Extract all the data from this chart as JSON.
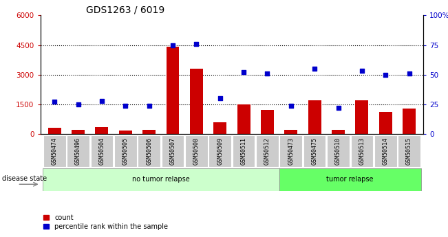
{
  "title": "GDS1263 / 6019",
  "samples": [
    "GSM50474",
    "GSM50496",
    "GSM50504",
    "GSM50505",
    "GSM50506",
    "GSM50507",
    "GSM50508",
    "GSM50509",
    "GSM50511",
    "GSM50512",
    "GSM50473",
    "GSM50475",
    "GSM50510",
    "GSM50513",
    "GSM50514",
    "GSM50515"
  ],
  "counts": [
    300,
    200,
    350,
    180,
    220,
    4400,
    3300,
    600,
    1500,
    1200,
    200,
    1700,
    200,
    1700,
    1100,
    1300
  ],
  "percentiles": [
    27,
    25,
    28,
    24,
    24,
    75,
    76,
    30,
    52,
    51,
    24,
    55,
    22,
    53,
    50,
    51
  ],
  "no_tumor_count": 10,
  "tumor_count": 6,
  "bar_color": "#cc0000",
  "dot_color": "#0000cc",
  "no_tumor_color": "#ccffcc",
  "tumor_color": "#66ff66",
  "xticklabel_bg": "#cccccc",
  "title_fontsize": 10,
  "axis_fontsize": 7.5,
  "tick_label_fontsize": 6
}
